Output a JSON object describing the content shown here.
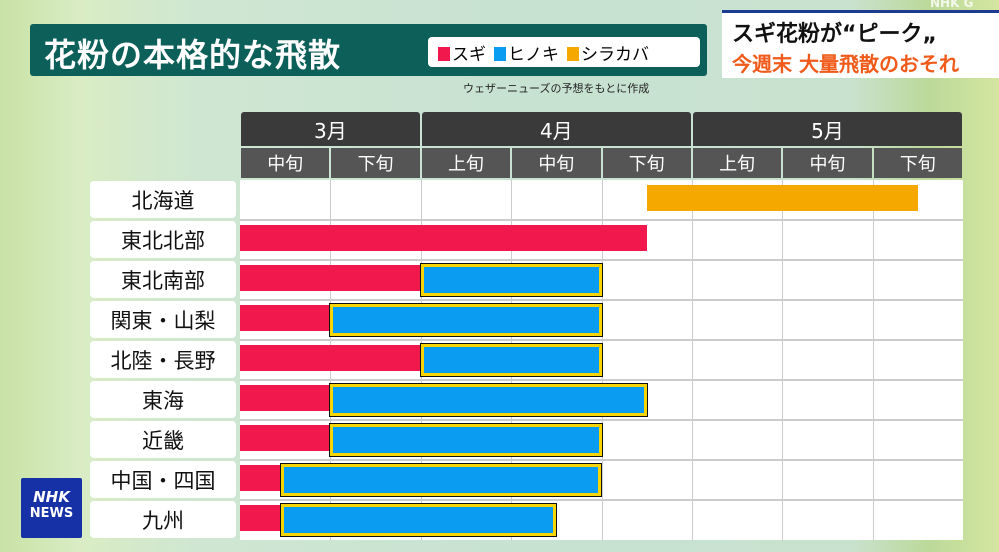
{
  "title": "花粉の本格的な飛散",
  "legend": [
    {
      "label": "スギ",
      "color": "#f0184c"
    },
    {
      "label": "ヒノキ",
      "color": "#0a9cf0"
    },
    {
      "label": "シラカバ",
      "color": "#f4a800"
    }
  ],
  "source": "ウェザーニューズの予想をもとに作成",
  "headline": {
    "line1": "スギ花粉が“ピーク„",
    "line2": "今週末 大量飛散のおそれ"
  },
  "watermark": "NHK G",
  "logo": {
    "line1": "NHK",
    "line2": "NEWS"
  },
  "chart_data": {
    "type": "gantt",
    "title": "花粉の本格的な飛散",
    "months": [
      {
        "label": "3月",
        "span": 2
      },
      {
        "label": "4月",
        "span": 3
      },
      {
        "label": "5月",
        "span": 3
      }
    ],
    "periods": [
      "中旬",
      "下旬",
      "上旬",
      "中旬",
      "下旬",
      "上旬",
      "中旬",
      "下旬"
    ],
    "unit": "旬 index from 3月中旬 start",
    "regions": [
      "北海道",
      "東北北部",
      "東北南部",
      "関東・山梨",
      "北陸・長野",
      "東海",
      "近畿",
      "中国・四国",
      "九州"
    ],
    "series": [
      {
        "name": "スギ",
        "values": [
          null,
          [
            0,
            4.5
          ],
          [
            0,
            2
          ],
          [
            0,
            1
          ],
          [
            0,
            2
          ],
          [
            0,
            1
          ],
          [
            0,
            1
          ],
          [
            0,
            0.45
          ],
          [
            0,
            0.45
          ]
        ]
      },
      {
        "name": "ヒノキ",
        "values": [
          null,
          null,
          [
            2,
            4
          ],
          [
            1,
            4
          ],
          [
            2,
            4
          ],
          [
            1,
            4.5
          ],
          [
            1,
            4
          ],
          [
            0.45,
            4
          ],
          [
            0.45,
            3.5
          ]
        ]
      },
      {
        "name": "シラカバ",
        "values": [
          [
            4.5,
            7.5
          ],
          null,
          null,
          null,
          null,
          null,
          null,
          null,
          null
        ]
      }
    ]
  }
}
